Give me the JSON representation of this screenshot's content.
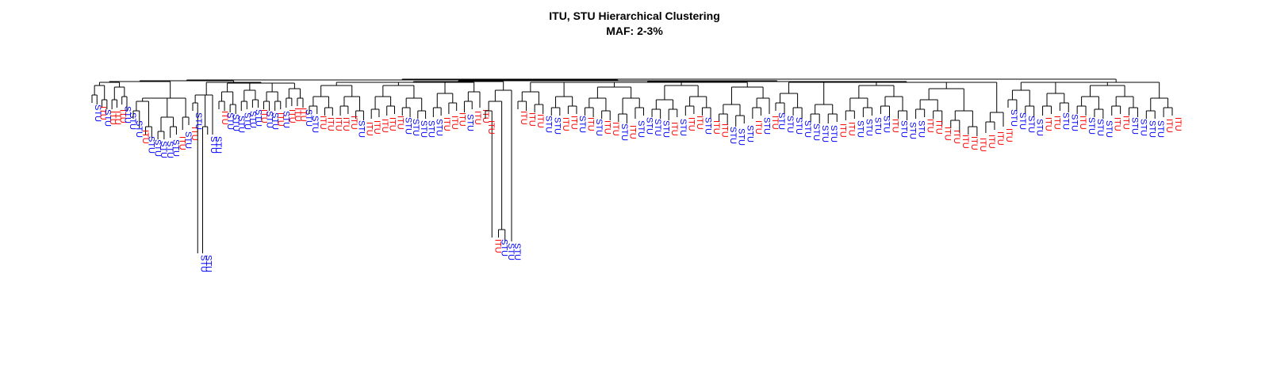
{
  "header": {
    "title_line_1": "ITU, STU Hierarchical Clustering",
    "title_line_2": "MAF: 2-3%"
  },
  "colors": {
    "ITU": "#ff0000",
    "STU": "#0000ff",
    "branch": "#000000"
  },
  "leaf_labels": [
    "ITU",
    "STU"
  ],
  "dendrogram": {
    "orientation": "vertical, leaves hanging below",
    "groups": [
      {
        "group": "left_small",
        "leaves": [
          "STU",
          "ITU",
          "STU",
          "ITU",
          "ITU",
          "ITU",
          "STU",
          "STU"
        ]
      },
      {
        "group": "left_cluster",
        "leaves": [
          "STU",
          "ITU",
          "STU",
          "STU",
          "STU",
          "STU",
          "STU",
          "ITU",
          "STU",
          "ITU"
        ]
      },
      {
        "group": "left_outliers",
        "leaves": [
          "STU",
          "STU",
          "STU",
          "STU",
          "STU"
        ]
      },
      {
        "group": "left_mid",
        "leaves": [
          "ITU",
          "STU",
          "STU",
          "STU",
          "STU",
          "STU",
          "STU",
          "ITU",
          "STU",
          "STU",
          "ITU",
          "STU",
          "ITU",
          "ITU",
          "ITU",
          "STU"
        ]
      },
      {
        "group": "mid_left",
        "leaves": [
          "STU",
          "ITU",
          "ITU",
          "ITU",
          "ITU",
          "ITU",
          "STU",
          "ITU",
          "ITU",
          "ITU",
          "ITU",
          "ITU",
          "STU",
          "STU",
          "STU",
          "STU",
          "STU",
          "ITU",
          "ITU",
          "ITU",
          "STU",
          "ITU",
          "ITU"
        ]
      },
      {
        "group": "center_outliers",
        "leaves": [
          "ITU",
          "ITU",
          "STU",
          "STU",
          "STU"
        ]
      },
      {
        "group": "mid_right",
        "leaves": [
          "ITU",
          "ITU",
          "ITU",
          "STU",
          "STU",
          "ITU",
          "ITU",
          "STU",
          "ITU",
          "STU",
          "ITU",
          "ITU",
          "STU",
          "ITU",
          "STU",
          "STU",
          "STU",
          "STU",
          "ITU",
          "STU",
          "ITU",
          "ITU",
          "STU",
          "ITU",
          "ITU",
          "STU",
          "STU",
          "STU",
          "ITU",
          "STU",
          "ITU"
        ]
      },
      {
        "group": "right_mid",
        "leaves": [
          "STU",
          "STU",
          "STU",
          "STU",
          "STU",
          "STU",
          "STU",
          "ITU",
          "ITU",
          "STU",
          "STU",
          "STU",
          "STU",
          "ITU",
          "STU",
          "STU",
          "STU",
          "ITU",
          "ITU",
          "ITU",
          "ITU",
          "ITU",
          "ITU",
          "ITU",
          "ITU",
          "ITU",
          "ITU"
        ]
      },
      {
        "group": "right_end",
        "leaves": [
          "STU",
          "STU",
          "STU",
          "STU",
          "ITU",
          "ITU",
          "STU",
          "STU",
          "ITU",
          "STU",
          "STU",
          "STU",
          "ITU",
          "ITU",
          "STU",
          "STU",
          "STU",
          "STU",
          "ITU",
          "ITU"
        ]
      }
    ]
  }
}
